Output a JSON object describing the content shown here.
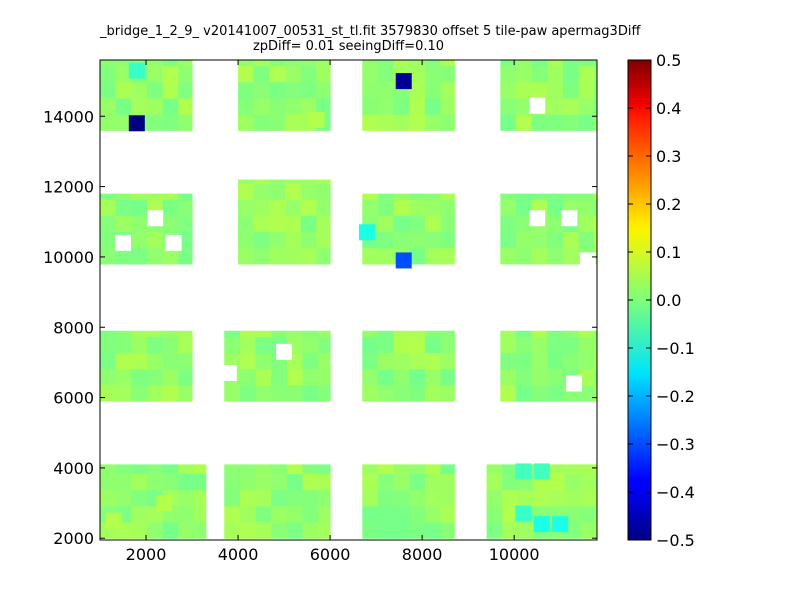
{
  "chart_data": {
    "type": "heatmap",
    "title_line1": "_bridge_1_2_9_ v20141007_00531_st_tl.fit 3579830 offset 5 tile-paw apermag3Diff",
    "title_line2": "zpDiff= 0.01 seeingDiff=0.10",
    "xlabel": "",
    "ylabel": "",
    "xlim": [
      1000,
      11800
    ],
    "ylim": [
      1950,
      15600
    ],
    "x_ticks": [
      2000,
      4000,
      6000,
      8000,
      10000
    ],
    "y_ticks": [
      2000,
      4000,
      6000,
      8000,
      10000,
      12000,
      14000
    ],
    "colorbar": {
      "colormap": "jet",
      "min": -0.5,
      "max": 0.5,
      "ticks": [
        0.5,
        0.4,
        0.3,
        0.2,
        0.1,
        0.0,
        -0.1,
        -0.2,
        -0.3,
        -0.4,
        -0.5
      ],
      "tick_labels": [
        "0.5",
        "0.4",
        "0.3",
        "0.2",
        "0.1",
        "0.0",
        "−0.1",
        "−0.2",
        "−0.3",
        "−0.4",
        "−0.5"
      ]
    },
    "cell_size": {
      "dx": 340,
      "dy": 460
    },
    "grid": false,
    "nominal_value": 0.02,
    "regions": [
      {
        "x0": 1000,
        "x1": 3000,
        "y0": 13600,
        "y1": 15600
      },
      {
        "x0": 4000,
        "x1": 6000,
        "y0": 13600,
        "y1": 15600
      },
      {
        "x0": 6700,
        "x1": 8700,
        "y0": 13600,
        "y1": 15600
      },
      {
        "x0": 9700,
        "x1": 11800,
        "y0": 13600,
        "y1": 15600
      },
      {
        "x0": 1000,
        "x1": 3000,
        "y0": 9800,
        "y1": 11800
      },
      {
        "x0": 4000,
        "x1": 6000,
        "y0": 9800,
        "y1": 12200
      },
      {
        "x0": 6700,
        "x1": 8700,
        "y0": 9800,
        "y1": 11800
      },
      {
        "x0": 9700,
        "x1": 11800,
        "y0": 9800,
        "y1": 11800
      },
      {
        "x0": 1000,
        "x1": 3000,
        "y0": 5900,
        "y1": 7900
      },
      {
        "x0": 3700,
        "x1": 6000,
        "y0": 5900,
        "y1": 7900
      },
      {
        "x0": 6700,
        "x1": 8700,
        "y0": 5900,
        "y1": 7900
      },
      {
        "x0": 9700,
        "x1": 11800,
        "y0": 5900,
        "y1": 7900
      },
      {
        "x0": 1000,
        "x1": 3300,
        "y0": 2000,
        "y1": 4100
      },
      {
        "x0": 3700,
        "x1": 6000,
        "y0": 2000,
        "y1": 4100
      },
      {
        "x0": 6700,
        "x1": 8700,
        "y0": 2000,
        "y1": 4100
      },
      {
        "x0": 9400,
        "x1": 11800,
        "y0": 2000,
        "y1": 4100
      }
    ],
    "highlighted_cells": [
      {
        "x": 1800,
        "y": 13800,
        "value": -0.5
      },
      {
        "x": 7600,
        "y": 15000,
        "value": -0.48
      },
      {
        "x": 7600,
        "y": 9900,
        "value": -0.3
      },
      {
        "x": 6800,
        "y": 10700,
        "value": -0.1
      },
      {
        "x": 1800,
        "y": 15300,
        "value": -0.07
      },
      {
        "x": 10600,
        "y": 2400,
        "value": -0.1
      },
      {
        "x": 11000,
        "y": 2400,
        "value": -0.1
      },
      {
        "x": 10200,
        "y": 3900,
        "value": -0.06
      },
      {
        "x": 10600,
        "y": 3900,
        "value": -0.06
      },
      {
        "x": 10200,
        "y": 2700,
        "value": -0.07
      },
      {
        "x": 2400,
        "y": 3000,
        "value": 0.05
      },
      {
        "x": 1300,
        "y": 2500,
        "value": 0.05
      },
      {
        "x": 5700,
        "y": 13900,
        "value": 0.05
      }
    ],
    "empty_cells": [
      {
        "x": 2200,
        "y": 11100
      },
      {
        "x": 1500,
        "y": 10400
      },
      {
        "x": 2600,
        "y": 10400
      },
      {
        "x": 10500,
        "y": 14300
      },
      {
        "x": 10500,
        "y": 11100
      },
      {
        "x": 11200,
        "y": 11100
      },
      {
        "x": 11600,
        "y": 9900
      },
      {
        "x": 5000,
        "y": 7300
      },
      {
        "x": 11300,
        "y": 6400
      },
      {
        "x": 3800,
        "y": 6700
      }
    ]
  }
}
